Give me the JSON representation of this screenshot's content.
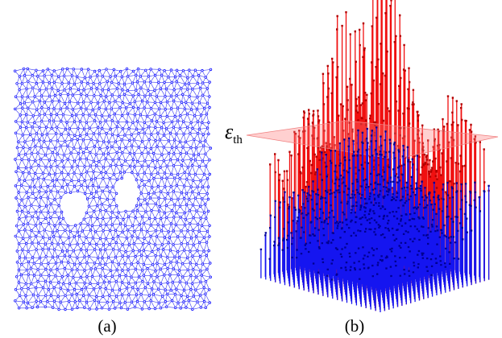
{
  "figure": {
    "panels": [
      {
        "caption": "(a)"
      },
      {
        "caption": "(b)"
      }
    ],
    "threshold_label": {
      "symbol": "ε",
      "subscript": "th"
    }
  }
}
